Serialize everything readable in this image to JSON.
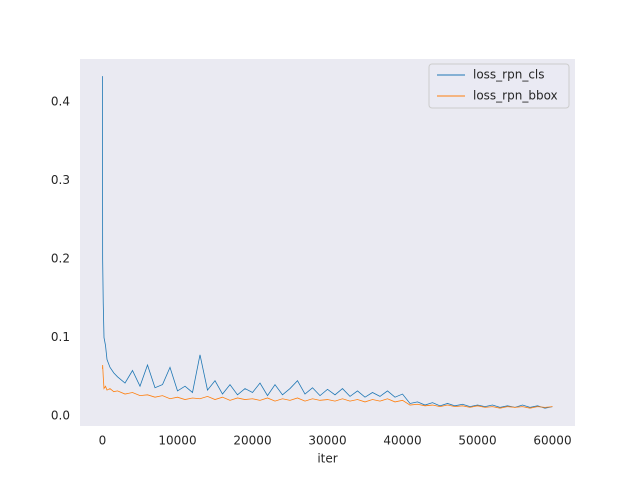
{
  "chart_data": {
    "type": "line",
    "xlabel": "iter",
    "x": [
      0,
      20,
      100,
      200,
      400,
      600,
      1000,
      1500,
      2000,
      3000,
      4000,
      5000,
      6000,
      7000,
      8000,
      9000,
      10000,
      11000,
      12000,
      13000,
      14000,
      15000,
      16000,
      17000,
      18000,
      19000,
      20000,
      21000,
      22000,
      23000,
      24000,
      25000,
      26000,
      27000,
      28000,
      29000,
      30000,
      31000,
      32000,
      33000,
      34000,
      35000,
      36000,
      37000,
      38000,
      39000,
      40000,
      41000,
      42000,
      43000,
      44000,
      45000,
      46000,
      47000,
      48000,
      49000,
      50000,
      51000,
      52000,
      53000,
      54000,
      55000,
      56000,
      57000,
      58000,
      59000,
      60000
    ],
    "series": [
      {
        "name": "loss_rpn_cls",
        "color": "#1f77b4",
        "values": [
          0.433,
          0.2,
          0.143,
          0.1,
          0.09,
          0.072,
          0.062,
          0.055,
          0.05,
          0.042,
          0.058,
          0.038,
          0.065,
          0.036,
          0.04,
          0.062,
          0.032,
          0.038,
          0.03,
          0.078,
          0.033,
          0.045,
          0.028,
          0.04,
          0.027,
          0.035,
          0.03,
          0.042,
          0.026,
          0.04,
          0.027,
          0.035,
          0.045,
          0.028,
          0.036,
          0.026,
          0.034,
          0.027,
          0.035,
          0.025,
          0.032,
          0.024,
          0.03,
          0.025,
          0.032,
          0.024,
          0.028,
          0.016,
          0.018,
          0.014,
          0.017,
          0.013,
          0.016,
          0.013,
          0.015,
          0.012,
          0.014,
          0.012,
          0.014,
          0.011,
          0.013,
          0.011,
          0.014,
          0.011,
          0.013,
          0.01,
          0.012
        ]
      },
      {
        "name": "loss_rpn_bbox",
        "color": "#ff7f0e",
        "values": [
          0.06,
          0.065,
          0.05,
          0.035,
          0.038,
          0.033,
          0.035,
          0.031,
          0.032,
          0.028,
          0.03,
          0.026,
          0.027,
          0.024,
          0.026,
          0.022,
          0.024,
          0.021,
          0.023,
          0.022,
          0.025,
          0.021,
          0.024,
          0.02,
          0.023,
          0.021,
          0.022,
          0.02,
          0.023,
          0.019,
          0.022,
          0.02,
          0.023,
          0.019,
          0.022,
          0.02,
          0.021,
          0.019,
          0.022,
          0.019,
          0.021,
          0.018,
          0.021,
          0.019,
          0.022,
          0.018,
          0.02,
          0.014,
          0.015,
          0.013,
          0.014,
          0.012,
          0.014,
          0.012,
          0.013,
          0.011,
          0.013,
          0.011,
          0.012,
          0.01,
          0.012,
          0.011,
          0.012,
          0.01,
          0.012,
          0.011,
          0.012
        ]
      }
    ],
    "xlim": [
      -3000,
      63000
    ],
    "ylim": [
      -0.0127,
      0.4548
    ],
    "xticks": [
      0,
      10000,
      20000,
      30000,
      40000,
      50000,
      60000
    ],
    "yticks": [
      {
        "value": 0,
        "label": "0.0"
      },
      0.1,
      0.2,
      0.3,
      0.4
    ],
    "grid": false,
    "legend": "upper right",
    "background": "#eaeaf2"
  }
}
